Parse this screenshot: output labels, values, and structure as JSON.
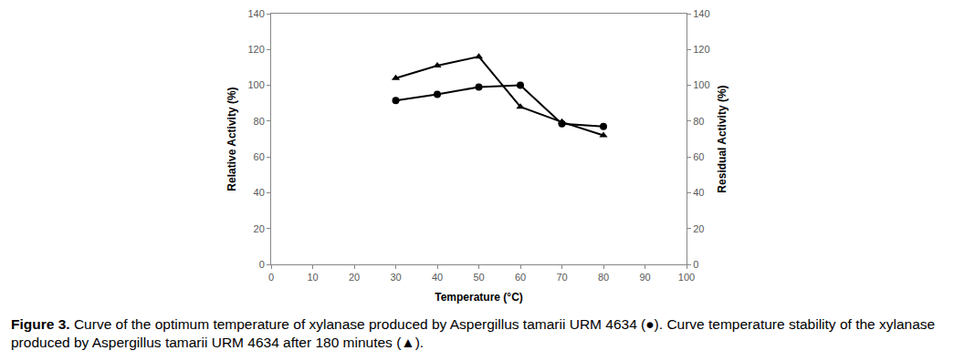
{
  "chart_data": {
    "type": "line",
    "x_label": "Temperature (°C)",
    "y_label": "Relative Activity (%)",
    "y2_label": "Residual Activity (%)",
    "caption_label": "Figure 3.",
    "caption": "Curve of the optimum temperature of xylanase produced by Aspergillus tamarii URM 4634 (●). Curve temperature stability of the xylanase produced by Aspergillus tamarii URM 4634 after 180 minutes (▲).",
    "x": [
      30,
      40,
      50,
      60,
      70,
      80
    ],
    "series": [
      {
        "color": "#000000",
        "marker": "circle",
        "line_style": "solid",
        "values": [
          91.5,
          95,
          99,
          100,
          78.5,
          77
        ]
      },
      {
        "color": "#000000",
        "marker": "triangle-up",
        "line_style": "solid",
        "axis": "y2",
        "values": [
          104,
          111,
          116,
          88,
          79.5,
          72
        ]
      }
    ],
    "xlim": [
      0,
      100
    ],
    "xticks": [
      0,
      10,
      20,
      30,
      40,
      50,
      60,
      70,
      80,
      90,
      100
    ],
    "ylim": [
      0,
      140
    ],
    "yticks": [
      0,
      20,
      40,
      60,
      80,
      100,
      120,
      140
    ],
    "y2lim": [
      0,
      140
    ],
    "y2ticks": [
      0,
      20,
      40,
      60,
      80,
      100,
      120,
      140
    ],
    "grid": false
  }
}
